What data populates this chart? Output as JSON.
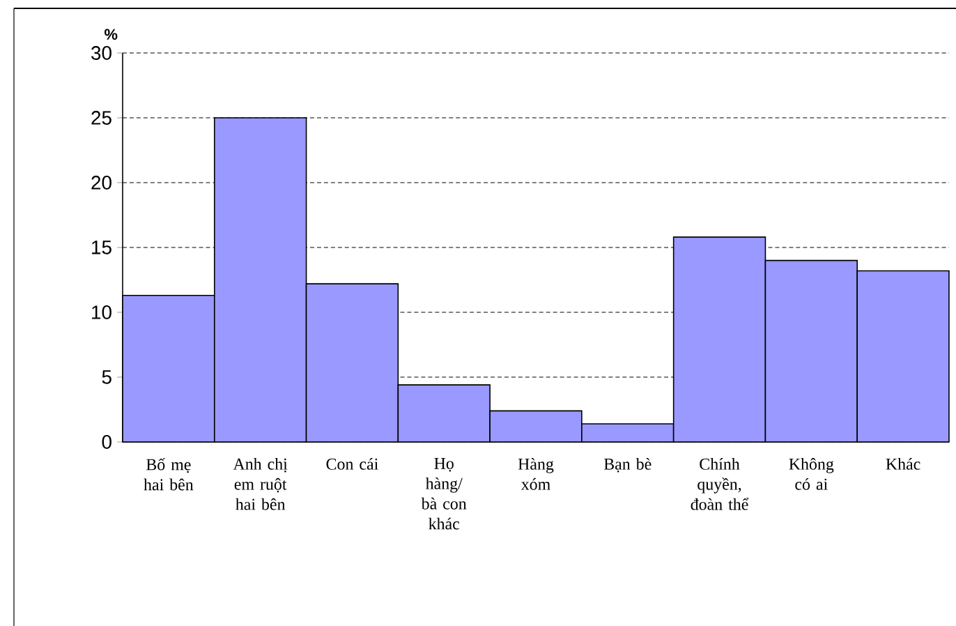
{
  "chart_data": {
    "type": "bar",
    "ylabel": "%",
    "categories": [
      "Bố mẹ hai bên",
      "Anh chị em ruột hai bên",
      "Con cái",
      "Họ hàng/ bà con khác",
      "Hàng xóm",
      "Bạn bè",
      "Chính quyền, đoàn thể",
      "Không có ai",
      "Khác"
    ],
    "values": [
      11.3,
      25,
      12.2,
      4.4,
      2.4,
      1.4,
      15.8,
      14.0,
      13.2
    ],
    "color": "#9999ff",
    "ylim": [
      0,
      30
    ],
    "yticks": [
      0,
      5,
      10,
      15,
      20,
      25,
      30
    ],
    "grid": "y"
  }
}
